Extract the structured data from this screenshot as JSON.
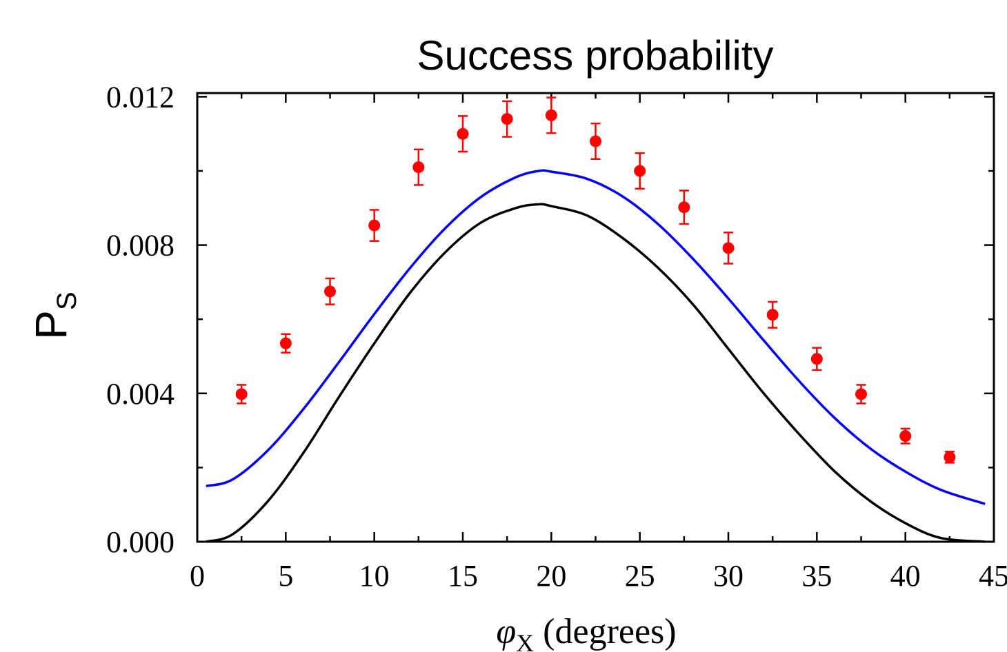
{
  "chart_data": {
    "type": "scatter",
    "title": "Success probability",
    "ylabel": {
      "main": "P",
      "sub": "S"
    },
    "xlabel": {
      "symbol": "φ",
      "sub": "X",
      "rest": " (degrees)"
    },
    "xlim": [
      0,
      45
    ],
    "ylim": [
      0,
      0.0121
    ],
    "x_ticks": [
      0,
      5,
      10,
      15,
      20,
      25,
      30,
      35,
      40,
      45
    ],
    "x_tick_labels": [
      "0",
      "5",
      "10",
      "15",
      "20",
      "25",
      "30",
      "35",
      "40",
      "45"
    ],
    "y_ticks": [
      0,
      0.004,
      0.008,
      0.012
    ],
    "y_tick_labels": [
      "0.000",
      "0.004",
      "0.008",
      "0.012"
    ],
    "grid": false,
    "series": [
      {
        "kind": "points",
        "color": "#ff0000",
        "x": [
          2.5,
          5,
          7.5,
          10,
          12.5,
          15,
          17.5,
          20,
          22.5,
          25,
          27.5,
          30,
          32.5,
          35,
          37.5,
          40,
          42.5
        ],
        "y": [
          0.00398,
          0.00535,
          0.00675,
          0.00853,
          0.0101,
          0.011,
          0.0114,
          0.0115,
          0.0108,
          0.01,
          0.00902,
          0.00792,
          0.00612,
          0.00493,
          0.00398,
          0.00285,
          0.00228
        ],
        "error": [
          0.00025,
          0.00025,
          0.00035,
          0.00042,
          0.00048,
          0.00048,
          0.00048,
          0.00048,
          0.00048,
          0.00048,
          0.00045,
          0.00042,
          0.00035,
          0.0003,
          0.00025,
          0.0002,
          0.00015
        ]
      },
      {
        "kind": "line",
        "color": "#0000ff",
        "x": [
          0.5,
          2,
          4,
          6,
          8,
          10,
          12,
          14,
          16,
          18,
          19.3,
          20,
          22,
          24,
          26,
          28,
          30,
          32,
          34,
          36,
          38,
          40,
          42,
          44.5
        ],
        "y": [
          0.0015,
          0.00168,
          0.00247,
          0.00358,
          0.00484,
          0.00614,
          0.00737,
          0.00845,
          0.00929,
          0.00983,
          0.01,
          0.00998,
          0.00979,
          0.00932,
          0.00858,
          0.00763,
          0.00656,
          0.00543,
          0.00433,
          0.00334,
          0.00252,
          0.00189,
          0.0014,
          0.00102
        ]
      },
      {
        "kind": "line",
        "color": "#000000",
        "x": [
          0.5,
          2,
          4,
          6,
          8,
          10,
          12,
          14,
          16,
          18,
          19.3,
          20,
          22,
          24,
          26,
          28,
          30,
          32,
          34,
          36,
          38,
          40,
          42,
          44.5
        ],
        "y": [
          0.0,
          0.0002,
          0.0011,
          0.0024,
          0.0039,
          0.00535,
          0.0067,
          0.0078,
          0.0086,
          0.009,
          0.0091,
          0.00905,
          0.0088,
          0.0082,
          0.0074,
          0.0064,
          0.0052,
          0.004,
          0.0029,
          0.0019,
          0.0011,
          0.0005,
          0.0001,
          0.0
        ]
      }
    ]
  }
}
